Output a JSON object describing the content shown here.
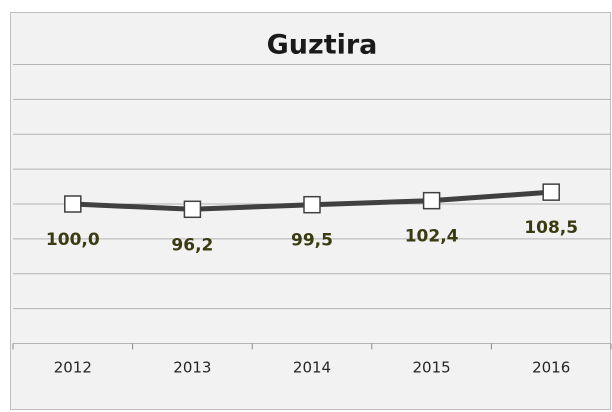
{
  "chart_data": {
    "type": "line",
    "title": "Guztira",
    "categories": [
      "2012",
      "2013",
      "2014",
      "2015",
      "2016"
    ],
    "series": [
      {
        "name": "Guztira",
        "color": "#404040",
        "values": [
          100.0,
          96.2,
          99.5,
          102.4,
          108.5
        ],
        "value_labels": [
          "100,0",
          "96,2",
          "99,5",
          "102,4",
          "108,5"
        ]
      }
    ],
    "ylim": [
      0,
      200
    ],
    "yticks": [
      0,
      25,
      50,
      75,
      100,
      125,
      150,
      175,
      200
    ],
    "grid": true
  }
}
